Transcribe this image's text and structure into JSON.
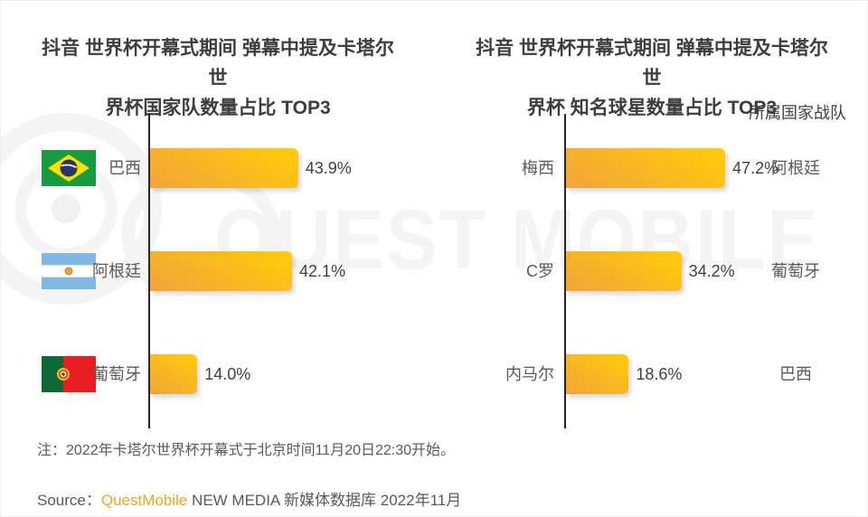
{
  "watermark": {
    "text": "QUEST MOBILE"
  },
  "left": {
    "title1": "抖音 世界杯开幕式期间 弹幕中提及卡塔尔世",
    "title2": "界杯国家队数量占比 TOP3",
    "rows": [
      {
        "label": "巴西",
        "flag": "brazil-flag",
        "value": 43.9,
        "percent": "43.9%"
      },
      {
        "label": "阿根廷",
        "flag": "argentina-flag",
        "value": 42.1,
        "percent": "42.1%"
      },
      {
        "label": "葡萄牙",
        "flag": "portugal-flag",
        "value": 14.0,
        "percent": "14.0%"
      }
    ]
  },
  "right": {
    "title1": "抖音 世界杯开幕式期间 弹幕中提及卡塔尔世",
    "title2": "界杯 知名球星数量占比 TOP3",
    "column_label": "所属国家战队",
    "rows": [
      {
        "label": "梅西",
        "value": 47.2,
        "percent": "47.2%",
        "country": "阿根廷"
      },
      {
        "label": "C罗",
        "value": 34.2,
        "percent": "34.2%",
        "country": "葡萄牙"
      },
      {
        "label": "内马尔",
        "value": 18.6,
        "percent": "18.6%",
        "country": "巴西"
      }
    ]
  },
  "note": "注：2022年卡塔尔世界杯开幕式于北京时间11月20日22:30开始。",
  "source": {
    "prefix": "Source：",
    "brand": "QuestMobile",
    "suffix": " NEW MEDIA 新媒体数据库 2022年11月"
  },
  "colors": {
    "bar_gradient_start": "#F1A43A",
    "bar_gradient_end": "#FFC80D",
    "axis": "#262626",
    "brand_orange": "#F7A21B",
    "watermark_gray": "#f4f4f4"
  },
  "chart_data": [
    {
      "type": "bar",
      "orientation": "horizontal",
      "title": "抖音 世界杯开幕式期间 弹幕中提及卡塔尔世界杯国家队数量占比 TOP3",
      "categories": [
        "巴西",
        "阿根廷",
        "葡萄牙"
      ],
      "values": [
        43.9,
        42.1,
        14.0
      ],
      "value_format": "percent",
      "xlim": [
        0,
        50
      ],
      "grid": false,
      "legend": false
    },
    {
      "type": "bar",
      "orientation": "horizontal",
      "title": "抖音 世界杯开幕式期间 弹幕中提及卡塔尔世界杯 知名球星数量占比 TOP3",
      "categories": [
        "梅西",
        "C罗",
        "内马尔"
      ],
      "values": [
        47.2,
        34.2,
        18.6
      ],
      "value_format": "percent",
      "annotations_label": "所属国家战队",
      "annotations": [
        "阿根廷",
        "葡萄牙",
        "巴西"
      ],
      "xlim": [
        0,
        50
      ],
      "grid": false,
      "legend": false
    }
  ]
}
